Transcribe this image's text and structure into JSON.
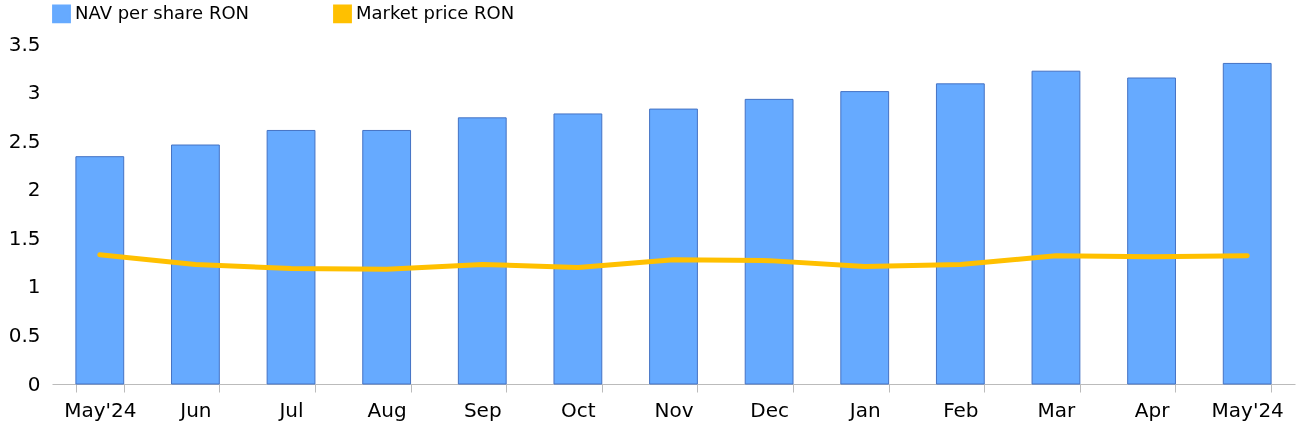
{
  "chart_data": {
    "type": "bar",
    "categories": [
      "May'24",
      "Jun",
      "Jul",
      "Aug",
      "Sep",
      "Oct",
      "Nov",
      "Dec",
      "Jan",
      "Feb",
      "Mar",
      "Apr",
      "May'24"
    ],
    "series": [
      {
        "name": "NAV per share RON",
        "color": "#66aaff",
        "values": [
          2.34,
          2.46,
          2.61,
          2.61,
          2.74,
          2.78,
          2.83,
          2.93,
          3.01,
          3.09,
          3.22,
          3.15,
          3.3
        ]
      },
      {
        "name": "Market price RON",
        "type": "line",
        "color": "#ffc000",
        "values": [
          1.33,
          1.23,
          1.19,
          1.18,
          1.23,
          1.2,
          1.28,
          1.27,
          1.21,
          1.23,
          1.32,
          1.31,
          1.32
        ]
      }
    ],
    "ylim": [
      0,
      3.5
    ],
    "yticks": [
      0,
      0.5,
      1,
      1.5,
      2,
      2.5,
      3,
      3.5
    ],
    "grid": false,
    "legend": "top"
  }
}
